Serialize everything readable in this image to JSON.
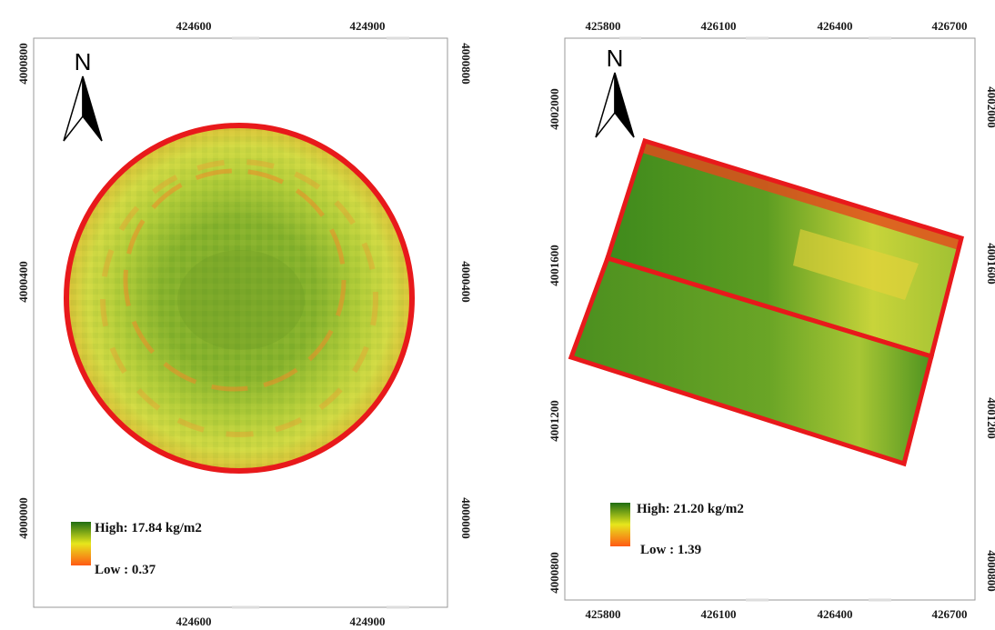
{
  "colors": {
    "boundary": "#e8191b",
    "high": "#1f6d12",
    "mid": "#e6e61c",
    "low": "#ff5a14"
  },
  "map_left": {
    "north_label": "N",
    "x_ticks": [
      "424600",
      "424900"
    ],
    "y_ticks": [
      "4000800",
      "4000400",
      "4000000"
    ],
    "legend": {
      "high": "High: 17.84 kg/m2",
      "low": "Low : 0.37"
    }
  },
  "map_right": {
    "north_label": "N",
    "x_ticks": [
      "425800",
      "426100",
      "426400",
      "426700"
    ],
    "y_ticks": [
      "4002000",
      "4001600",
      "4001200",
      "4000800"
    ],
    "legend": {
      "high": "High: 21.20 kg/m2",
      "low": "Low : 1.39"
    }
  }
}
